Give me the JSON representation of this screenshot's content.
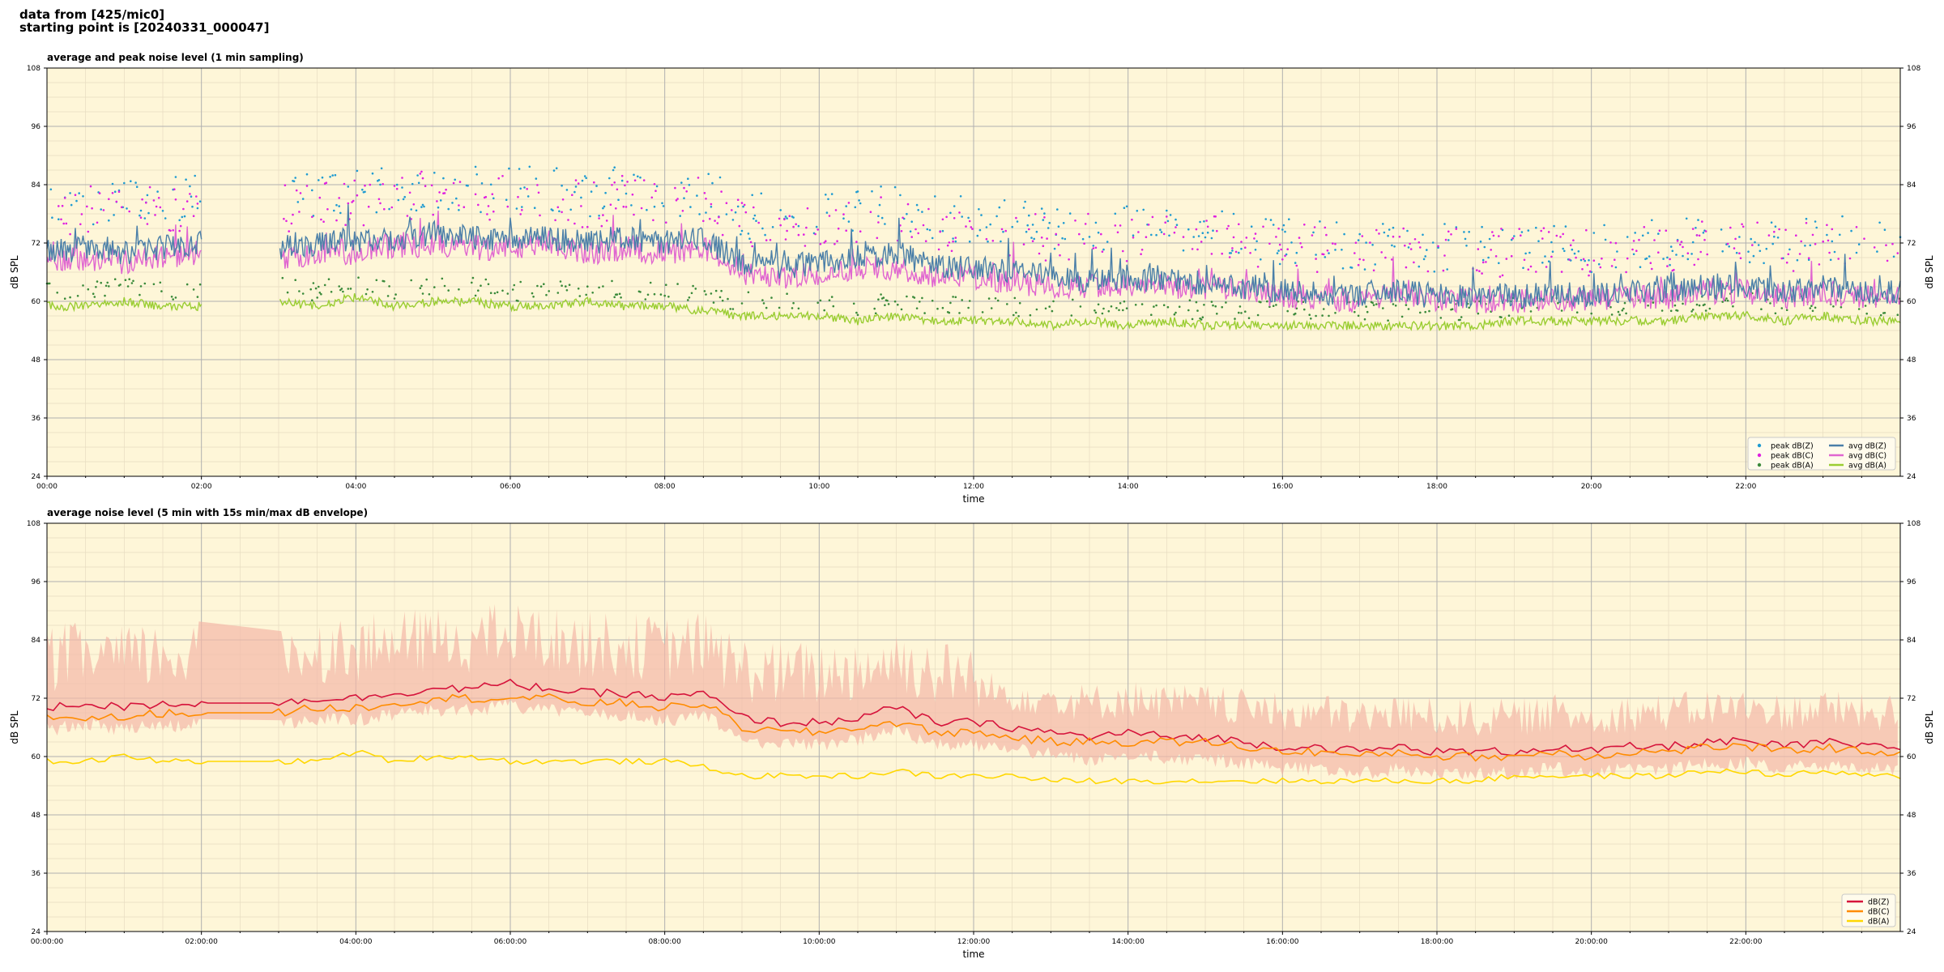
{
  "header": {
    "line1": "data from [425/mic0]",
    "line2": "starting point is [20240331_000047]"
  },
  "chart_data": [
    {
      "type": "line",
      "title": "average and peak noise level (1 min sampling)",
      "xlabel": "time",
      "ylabel": "dB SPL",
      "ylim": [
        24,
        108
      ],
      "yticks": [
        24,
        36,
        48,
        60,
        72,
        84,
        96,
        108
      ],
      "xlim_hours": [
        0,
        24
      ],
      "xtick_labels": [
        "00:00",
        "02:00",
        "04:00",
        "06:00",
        "08:00",
        "10:00",
        "12:00",
        "14:00",
        "16:00",
        "18:00",
        "20:00",
        "22:00"
      ],
      "grid": true,
      "legend_position": "lower-right",
      "legend": [
        {
          "label": "peak dB(Z)",
          "style": "dot",
          "color": "#1f9bd1"
        },
        {
          "label": "peak dB(C)",
          "style": "dot",
          "color": "#e020e0"
        },
        {
          "label": "peak dB(A)",
          "style": "dot",
          "color": "#3a8a3a"
        },
        {
          "label": "avg dB(Z)",
          "style": "line",
          "color": "#4a7fa8"
        },
        {
          "label": "avg dB(C)",
          "style": "line",
          "color": "#e066d0"
        },
        {
          "label": "avg dB(A)",
          "style": "line",
          "color": "#9acd32"
        }
      ],
      "gap_hours": [
        2.0,
        3.0
      ],
      "series": [
        {
          "key": "avgZ",
          "hours": [
            0,
            0.5,
            1,
            1.5,
            2,
            3,
            3.5,
            4,
            4.5,
            5,
            5.5,
            6,
            6.5,
            7,
            7.5,
            8,
            8.5,
            9,
            9.5,
            10,
            10.5,
            11,
            11.5,
            12,
            12.5,
            13,
            13.5,
            14,
            14.5,
            15,
            15.5,
            16,
            16.5,
            17,
            17.5,
            18,
            18.5,
            19,
            19.5,
            20,
            20.5,
            21,
            21.5,
            22,
            22.5,
            23,
            23.5,
            24
          ],
          "values": [
            70,
            71,
            70,
            71,
            72,
            71,
            72,
            72,
            73,
            74,
            73,
            73,
            73,
            72,
            73,
            72,
            73,
            68,
            67,
            68,
            69,
            70,
            67,
            67,
            66,
            65,
            64,
            65,
            64,
            64,
            63,
            62,
            62,
            61,
            62,
            61,
            61,
            61,
            62,
            61,
            62,
            62,
            63,
            63,
            62,
            63,
            62,
            62
          ]
        },
        {
          "key": "avgC",
          "hours": [
            0,
            0.5,
            1,
            1.5,
            2,
            3,
            3.5,
            4,
            4.5,
            5,
            5.5,
            6,
            6.5,
            7,
            7.5,
            8,
            8.5,
            9,
            9.5,
            10,
            10.5,
            11,
            11.5,
            12,
            12.5,
            13,
            13.5,
            14,
            14.5,
            15,
            15.5,
            16,
            16.5,
            17,
            17.5,
            18,
            18.5,
            19,
            19.5,
            20,
            20.5,
            21,
            21.5,
            22,
            22.5,
            23,
            23.5,
            24
          ],
          "values": [
            68,
            69,
            68,
            69,
            70,
            69,
            70,
            70,
            71,
            72,
            71,
            71,
            71,
            70,
            71,
            70,
            71,
            66,
            65,
            66,
            67,
            67,
            65,
            65,
            64,
            63,
            63,
            63,
            63,
            63,
            62,
            61,
            61,
            60,
            61,
            60,
            60,
            60,
            61,
            60,
            61,
            61,
            62,
            62,
            61,
            62,
            61,
            61
          ]
        },
        {
          "key": "avgA",
          "hours": [
            0,
            0.5,
            1,
            1.5,
            2,
            3,
            3.5,
            4,
            4.5,
            5,
            5.5,
            6,
            6.5,
            7,
            7.5,
            8,
            8.5,
            9,
            9.5,
            10,
            10.5,
            11,
            11.5,
            12,
            12.5,
            13,
            13.5,
            14,
            14.5,
            15,
            15.5,
            16,
            16.5,
            17,
            17.5,
            18,
            18.5,
            19,
            19.5,
            20,
            20.5,
            21,
            21.5,
            22,
            22.5,
            23,
            23.5,
            24
          ],
          "values": [
            59,
            59,
            60,
            59,
            59,
            60,
            59,
            61,
            59,
            60,
            60,
            59,
            59,
            60,
            59,
            59,
            58,
            57,
            57,
            57,
            56,
            57,
            56,
            56,
            56,
            55,
            56,
            55,
            56,
            55,
            55,
            55,
            55,
            55,
            55,
            55,
            55,
            56,
            56,
            56,
            56,
            56,
            57,
            57,
            56,
            57,
            56,
            56
          ]
        }
      ]
    },
    {
      "type": "line",
      "title": "average noise level (5 min with 15s min/max dB envelope)",
      "xlabel": "time",
      "ylabel": "dB SPL",
      "ylim": [
        24,
        108
      ],
      "yticks": [
        24,
        36,
        48,
        60,
        72,
        84,
        96,
        108
      ],
      "xlim_hours": [
        0,
        24
      ],
      "xtick_labels": [
        "00:00:00",
        "02:00:00",
        "04:00:00",
        "06:00:00",
        "08:00:00",
        "10:00:00",
        "12:00:00",
        "14:00:00",
        "16:00:00",
        "18:00:00",
        "20:00:00",
        "22:00:00"
      ],
      "grid": true,
      "legend_position": "lower-right",
      "legend": [
        {
          "label": "dB(Z)",
          "style": "line",
          "color": "#d6143c"
        },
        {
          "label": "dB(C)",
          "style": "line",
          "color": "#ff8c00"
        },
        {
          "label": "dB(A)",
          "style": "line",
          "color": "#ffd700"
        }
      ],
      "envelope_color": "#f4b8a8",
      "series": [
        {
          "key": "Z",
          "hours": [
            0,
            0.5,
            1,
            1.5,
            2,
            3,
            3.5,
            4,
            4.5,
            5,
            5.5,
            6,
            6.5,
            7,
            7.5,
            8,
            8.5,
            9,
            9.5,
            10,
            10.5,
            11,
            11.5,
            12,
            12.5,
            13,
            13.5,
            14,
            14.5,
            15,
            15.5,
            16,
            16.5,
            17,
            17.5,
            18,
            18.5,
            19,
            19.5,
            20,
            20.5,
            21,
            21.5,
            22,
            22.5,
            23,
            23.5,
            24
          ],
          "values": [
            70,
            71,
            70,
            71,
            71,
            71,
            72,
            72,
            73,
            74,
            74,
            75,
            74,
            73,
            73,
            72,
            73,
            68,
            67,
            67,
            68,
            70,
            67,
            67,
            66,
            65,
            64,
            65,
            64,
            64,
            63,
            62,
            62,
            61,
            62,
            61,
            61,
            61,
            62,
            61,
            62,
            62,
            63,
            63,
            62,
            63,
            62,
            62
          ]
        },
        {
          "key": "C",
          "hours": [
            0,
            0.5,
            1,
            1.5,
            2,
            3,
            3.5,
            4,
            4.5,
            5,
            5.5,
            6,
            6.5,
            7,
            7.5,
            8,
            8.5,
            9,
            9.5,
            10,
            10.5,
            11,
            11.5,
            12,
            12.5,
            13,
            13.5,
            14,
            14.5,
            15,
            15.5,
            16,
            16.5,
            17,
            17.5,
            18,
            18.5,
            19,
            19.5,
            20,
            20.5,
            21,
            21.5,
            22,
            22.5,
            23,
            23.5,
            24
          ],
          "values": [
            68,
            68,
            68,
            69,
            69,
            69,
            70,
            70,
            71,
            72,
            72,
            72,
            72,
            71,
            71,
            70,
            71,
            66,
            65,
            65,
            66,
            67,
            65,
            65,
            64,
            63,
            63,
            63,
            63,
            63,
            62,
            61,
            61,
            60,
            61,
            60,
            60,
            60,
            61,
            60,
            61,
            61,
            62,
            62,
            61,
            62,
            61,
            61
          ]
        },
        {
          "key": "A",
          "hours": [
            0,
            0.5,
            1,
            1.5,
            2,
            3,
            3.5,
            4,
            4.5,
            5,
            5.5,
            6,
            6.5,
            7,
            7.5,
            8,
            8.5,
            9,
            9.5,
            10,
            10.5,
            11,
            11.5,
            12,
            12.5,
            13,
            13.5,
            14,
            14.5,
            15,
            15.5,
            16,
            16.5,
            17,
            17.5,
            18,
            18.5,
            19,
            19.5,
            20,
            20.5,
            21,
            21.5,
            22,
            22.5,
            23,
            23.5,
            24
          ],
          "values": [
            59,
            59,
            60,
            59,
            59,
            59,
            59,
            61,
            59,
            60,
            60,
            59,
            59,
            59,
            59,
            59,
            58,
            56,
            56,
            56,
            56,
            57,
            56,
            56,
            56,
            55,
            55,
            55,
            55,
            55,
            55,
            55,
            55,
            55,
            55,
            55,
            55,
            56,
            56,
            56,
            56,
            56,
            57,
            57,
            56,
            57,
            56,
            56
          ]
        }
      ]
    }
  ]
}
